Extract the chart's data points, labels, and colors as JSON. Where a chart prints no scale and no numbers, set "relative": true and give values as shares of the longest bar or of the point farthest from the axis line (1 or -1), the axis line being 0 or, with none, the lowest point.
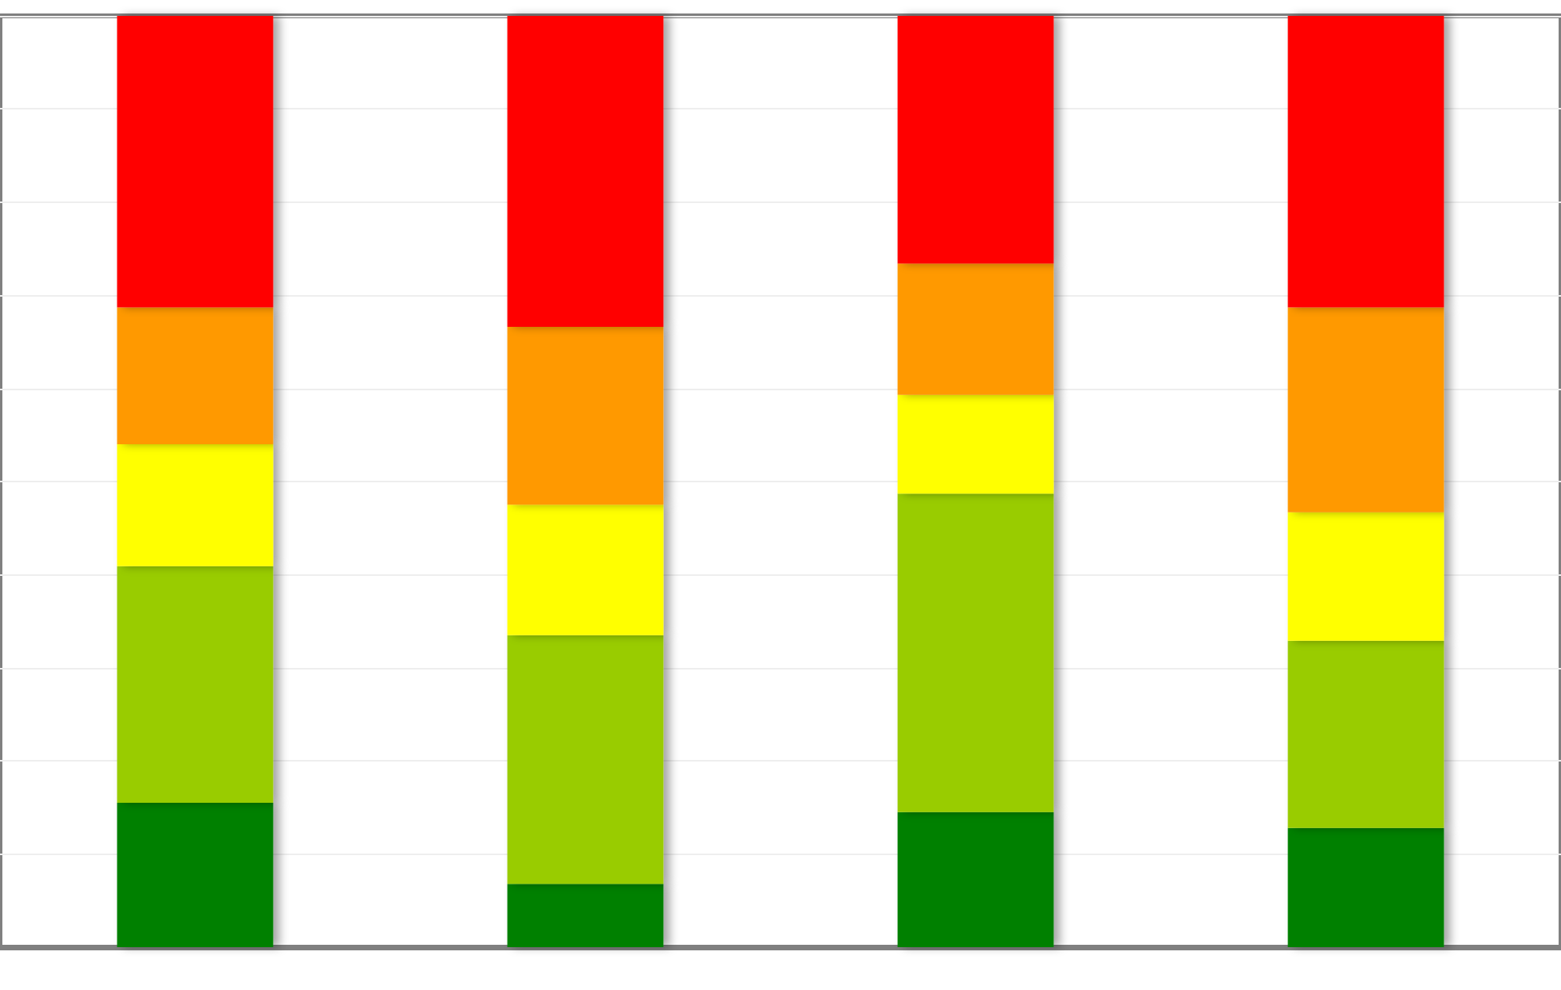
{
  "chart_data": {
    "type": "bar",
    "stacked": true,
    "relative": true,
    "grid": "y",
    "categories": [
      null,
      null,
      null,
      null
    ],
    "series": [
      {
        "color": "#008000",
        "values": [
          0.155,
          0.068,
          0.145,
          0.128
        ]
      },
      {
        "color": "#99cc00",
        "values": [
          0.254,
          0.267,
          0.342,
          0.201
        ]
      },
      {
        "color": "#ffff00",
        "values": [
          0.131,
          0.14,
          0.106,
          0.138
        ]
      },
      {
        "color": "#ff9900",
        "values": [
          0.147,
          0.191,
          0.141,
          0.22
        ]
      },
      {
        "color": "#ff0000",
        "values": [
          0.313,
          0.334,
          0.266,
          0.313
        ]
      }
    ]
  }
}
